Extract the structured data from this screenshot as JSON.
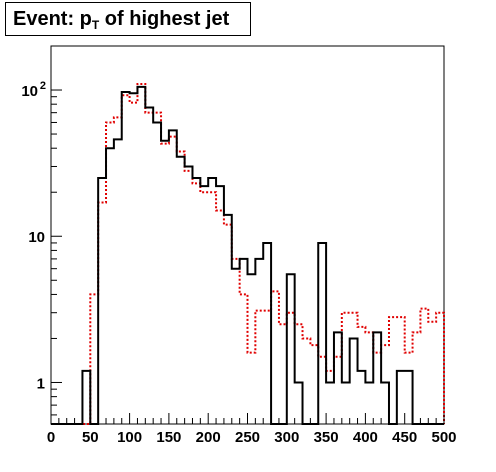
{
  "chart_data": {
    "type": "line",
    "title_prefix": "Event: p",
    "title_subscript": "T",
    "title_suffix": " of highest jet",
    "xlabel": "",
    "ylabel": "",
    "xlim": [
      0,
      500
    ],
    "ylim": [
      0.52,
      200
    ],
    "y_scale": "log",
    "x_ticks": [
      "0",
      "50",
      "100",
      "150",
      "200",
      "250",
      "300",
      "350",
      "400",
      "450",
      "500"
    ],
    "y_ticks": [
      {
        "value": 1,
        "label": "1"
      },
      {
        "value": 10,
        "label": "10"
      },
      {
        "value": 100,
        "label": "10",
        "exponent": "2"
      }
    ],
    "grid": false,
    "bin_width": 10,
    "bin_edges_start": 0,
    "series": [
      {
        "style": "solid",
        "color": "#000000",
        "values": [
          0,
          0,
          0,
          0,
          1.2,
          0,
          25,
          40,
          46,
          97,
          95,
          105,
          76,
          60,
          45,
          53,
          35,
          30,
          25,
          22,
          25,
          22,
          14,
          6,
          7,
          5.5,
          7,
          9,
          0,
          0,
          5.5,
          1,
          0,
          0,
          9,
          1,
          2.2,
          1,
          2,
          1.2,
          1,
          2.2,
          1,
          0,
          1.2,
          1.2,
          0,
          0,
          0,
          0
        ]
      },
      {
        "style": "dotted",
        "color": "#e00000",
        "values": [
          0,
          0,
          0,
          0,
          0,
          4,
          17,
          60,
          65,
          92,
          82,
          110,
          70,
          70,
          43,
          48,
          38,
          28,
          23,
          20,
          20,
          15,
          12,
          7,
          4,
          1.6,
          3.1,
          3.1,
          4.2,
          2.5,
          3,
          2.5,
          2,
          1.8,
          1.5,
          1.2,
          1.5,
          3,
          3,
          2.4,
          2.2,
          1.6,
          1.8,
          2.8,
          2.8,
          1.6,
          2.2,
          3.2,
          2.6,
          3
        ]
      }
    ]
  }
}
